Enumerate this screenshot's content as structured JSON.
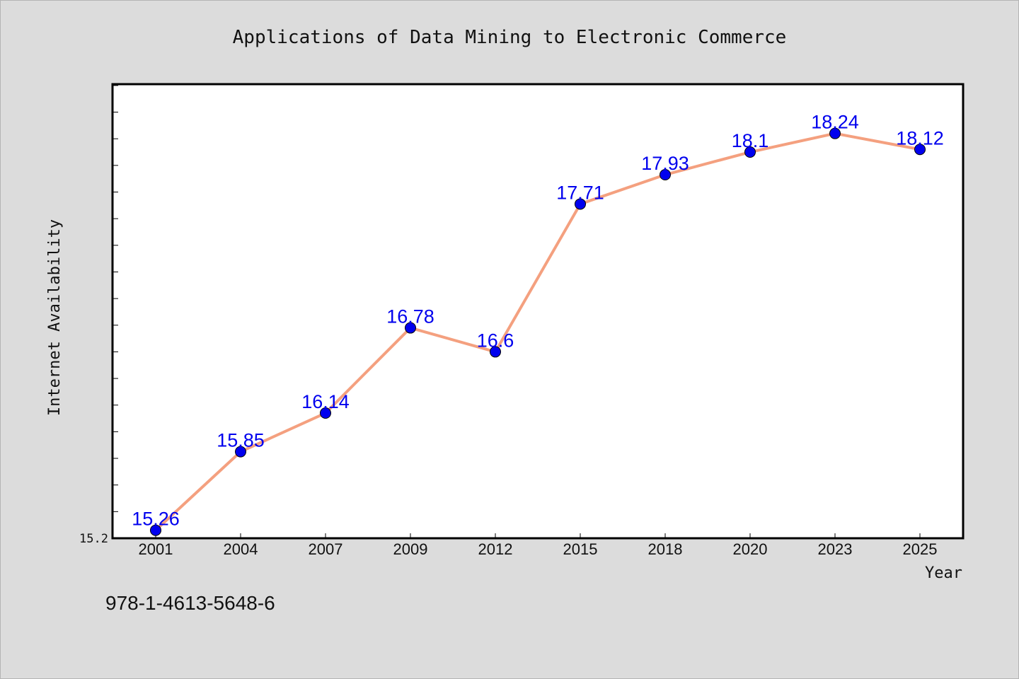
{
  "chart_data": {
    "type": "line",
    "title": "Applications of Data Mining to Electronic Commerce",
    "xlabel": "Year",
    "ylabel": "Internet Availability",
    "categories": [
      "2001",
      "2004",
      "2007",
      "2009",
      "2012",
      "2015",
      "2018",
      "2020",
      "2023",
      "2025"
    ],
    "series": [
      {
        "values": [
          15.26,
          15.85,
          16.14,
          16.78,
          16.6,
          17.71,
          17.93,
          18.1,
          18.24,
          18.12
        ]
      }
    ],
    "ylim": [
      15.2,
      18.61
    ],
    "yticks_labeled": [
      "15.2"
    ],
    "grid": false,
    "data_labels": true,
    "line_color": "#f4a07f",
    "marker_color": "#0000ee"
  },
  "footer": {
    "isbn": "978-1-4613-5648-6"
  }
}
